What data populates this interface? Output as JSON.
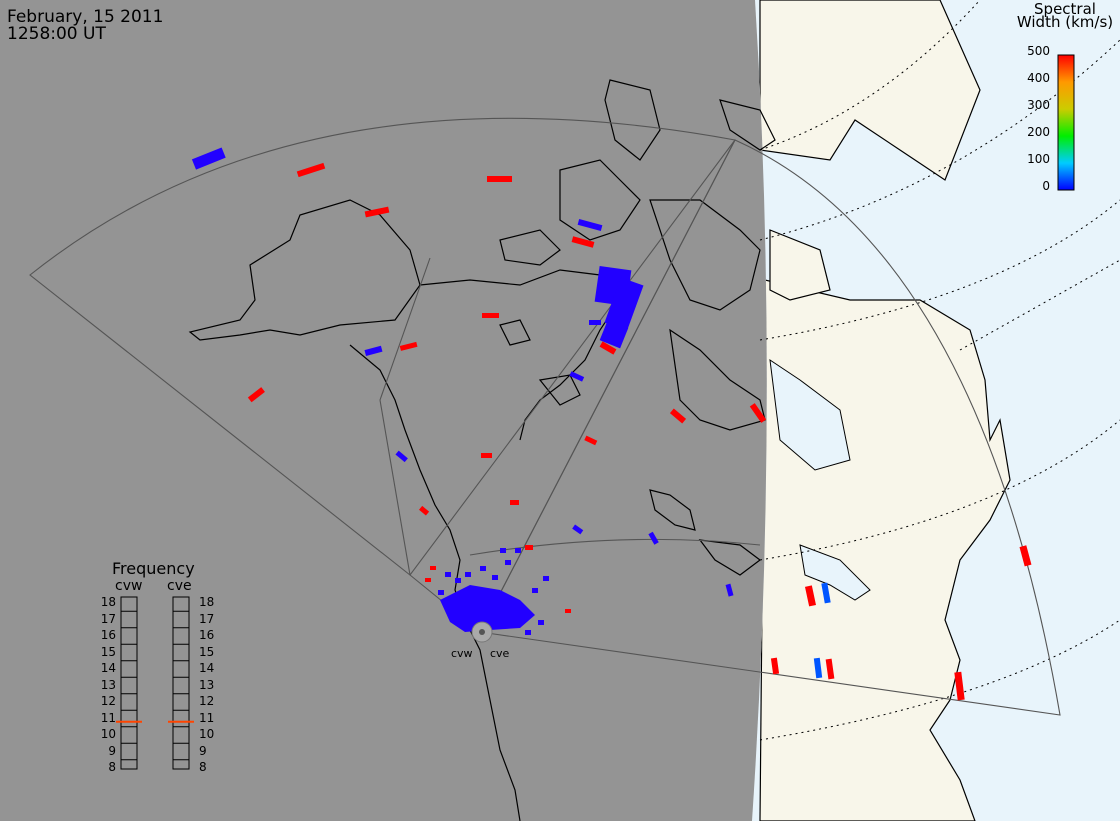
{
  "header": {
    "date": "February, 15 2011",
    "time": "1258:00 UT"
  },
  "colorbar": {
    "title_line1": "Spectral",
    "title_line2": "Width (km/s)",
    "ticks": [
      "500",
      "400",
      "300",
      "200",
      "100",
      "0"
    ],
    "scale_min": 0,
    "scale_max": 500
  },
  "frequency_panel": {
    "title": "Frequency",
    "radars": [
      {
        "name": "cvw",
        "frequency_mhz": 10.8
      },
      {
        "name": "cve",
        "frequency_mhz": 10.8
      }
    ],
    "ticks": [
      "18",
      "17",
      "16",
      "15",
      "14",
      "13",
      "12",
      "11",
      "10",
      "9",
      "8"
    ],
    "range": [
      8,
      18
    ]
  },
  "stations": [
    {
      "name": "cvw"
    },
    {
      "name": "cve"
    }
  ],
  "colors": {
    "night": "#949494",
    "land": "#f8f6ea",
    "ocean": "#e8f4fb",
    "high_width": "#ff0000",
    "low_width": "#0000ff",
    "coastline": "#000000",
    "fov": "#555555",
    "freq_marker": "#ff4400"
  },
  "scatter_summary": {
    "dominant_low": "blue (~0 km/s)",
    "dominant_high": "red (~500 km/s)"
  }
}
